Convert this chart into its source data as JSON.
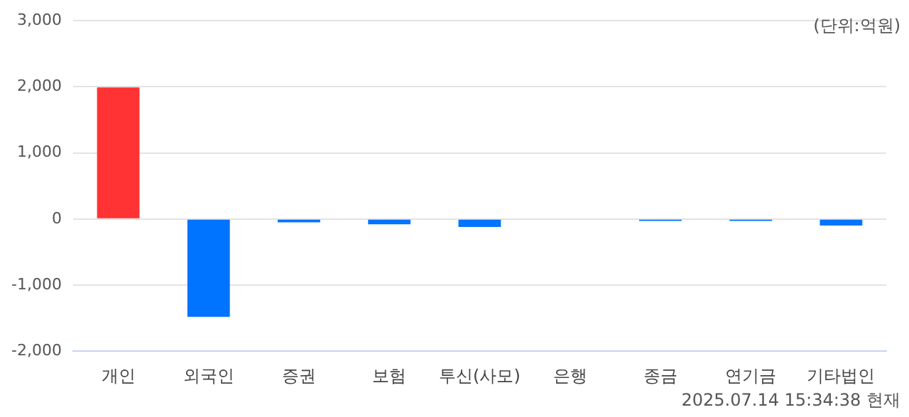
{
  "chart_data": {
    "type": "bar",
    "categories": [
      "개인",
      "외국인",
      "증권",
      "보험",
      "투신(사모)",
      "은행",
      "종금",
      "연기금",
      "기타법인"
    ],
    "values": [
      1990,
      -1480,
      -50,
      -80,
      -120,
      0,
      -30,
      -30,
      -100
    ],
    "colors": [
      "#ff3333",
      "#0073ff",
      "#0073ff",
      "#0073ff",
      "#0073ff",
      "#0073ff",
      "#0073ff",
      "#0073ff",
      "#0073ff"
    ],
    "ylim": [
      -2000,
      3000
    ],
    "yticks": [
      {
        "value": -2000,
        "label": "-2,000"
      },
      {
        "value": -1000,
        "label": "-1,000"
      },
      0,
      {
        "value": 1000,
        "label": "1,000"
      },
      {
        "value": 2000,
        "label": "2,000"
      },
      {
        "value": 3000,
        "label": "3,000"
      }
    ],
    "grid": "y",
    "legend": false,
    "annotations": [
      "(단위:억원)",
      "2025.07.14 15:34:38 현재"
    ]
  }
}
